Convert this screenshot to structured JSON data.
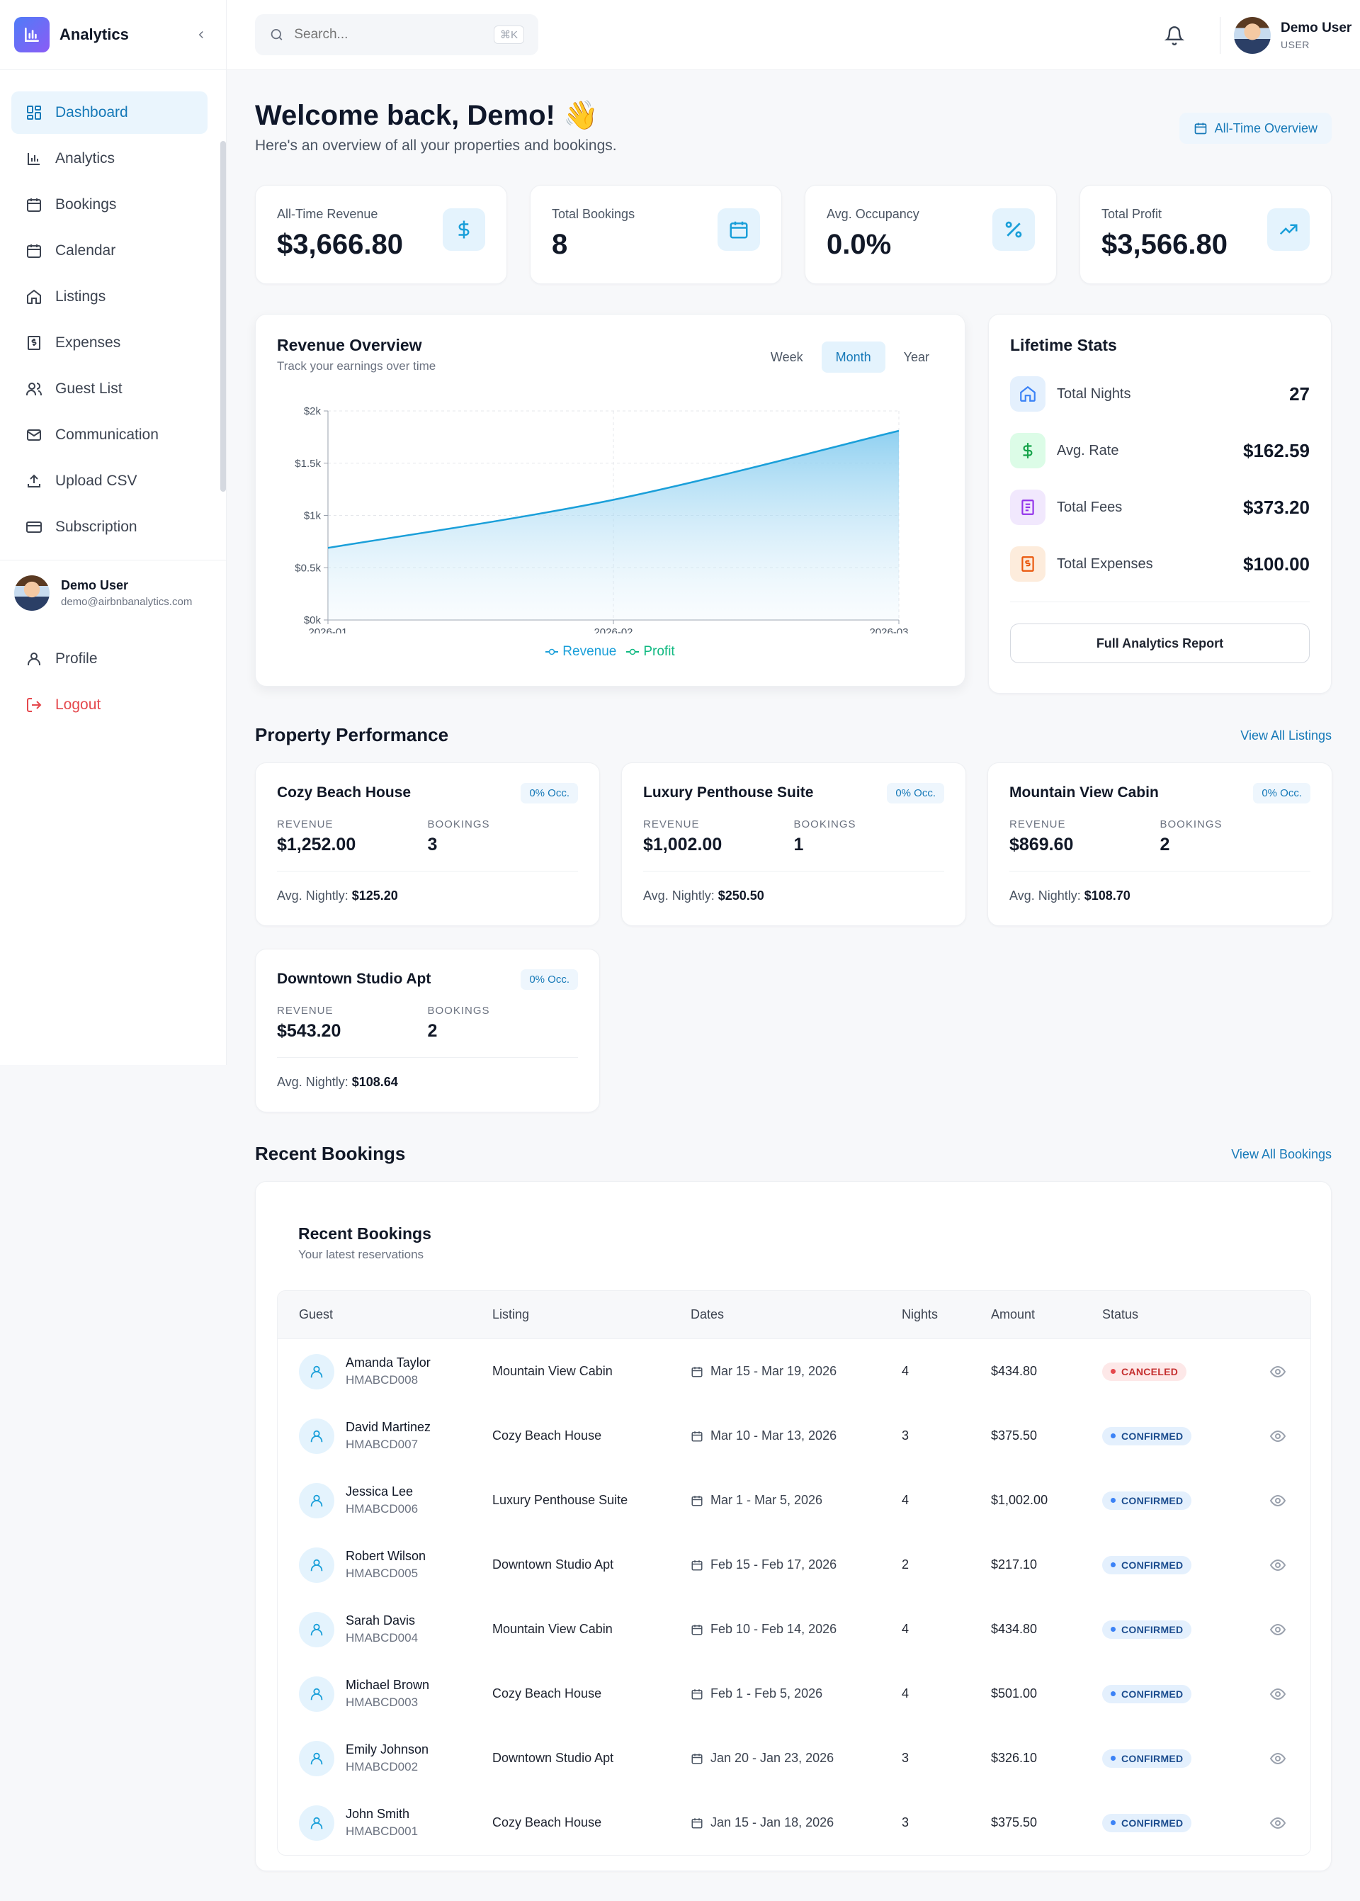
{
  "sidebar": {
    "brand": "Analytics",
    "nav": [
      "Dashboard",
      "Analytics",
      "Bookings",
      "Calendar",
      "Listings",
      "Expenses",
      "Guest List",
      "Communication",
      "Upload CSV",
      "Subscription"
    ],
    "user": {
      "name": "Demo User",
      "email": "demo@airbnbanalytics.com"
    },
    "sub_nav": {
      "profile": "Profile",
      "logout": "Logout"
    }
  },
  "header": {
    "search_placeholder": "Search...",
    "shortcut": "⌘K",
    "user_name": "Demo User",
    "user_role": "USER"
  },
  "welcome": {
    "title": "Welcome back, Demo! 👋",
    "subtitle": "Here's an overview of all your properties and bookings.",
    "overview_button": "All-Time Overview"
  },
  "stats": [
    {
      "label": "All-Time Revenue",
      "value": "$3,666.80"
    },
    {
      "label": "Total Bookings",
      "value": "8"
    },
    {
      "label": "Avg. Occupancy",
      "value": "0.0%"
    },
    {
      "label": "Total Profit",
      "value": "$3,566.80"
    }
  ],
  "revenue": {
    "title": "Revenue Overview",
    "subtitle": "Track your earnings over time",
    "tabs": [
      "Week",
      "Month",
      "Year"
    ],
    "active_tab": "Month"
  },
  "chart_data": {
    "type": "area",
    "x": [
      "2026-01",
      "2026-02",
      "2026-03"
    ],
    "series": [
      {
        "name": "Revenue",
        "values": [
          690,
          1150,
          1810
        ]
      },
      {
        "name": "Profit",
        "values": [
          690,
          1150,
          1810
        ]
      }
    ],
    "yticks": [
      "$0k",
      "$0.5k",
      "$1k",
      "$1.5k",
      "$2k"
    ],
    "ylim": [
      0,
      2000
    ],
    "grid": true,
    "legend": "bottom-center",
    "colors": {
      "revenue": "#1a9fd9",
      "profit": "#10b981"
    }
  },
  "lifetime": {
    "title": "Lifetime Stats",
    "items": [
      {
        "label": "Total Nights",
        "value": "27"
      },
      {
        "label": "Avg. Rate",
        "value": "$162.59"
      },
      {
        "label": "Total Fees",
        "value": "$373.20"
      },
      {
        "label": "Total Expenses",
        "value": "$100.00"
      }
    ],
    "button": "Full Analytics Report"
  },
  "properties": {
    "title": "Property Performance",
    "link": "View All Listings",
    "revenue_label": "REVENUE",
    "bookings_label": "BOOKINGS",
    "avg_label": "Avg. Nightly:",
    "items": [
      {
        "name": "Cozy Beach House",
        "occ": "0% Occ.",
        "revenue": "$1,252.00",
        "bookings": "3",
        "avg": "$125.20"
      },
      {
        "name": "Luxury Penthouse Suite",
        "occ": "0% Occ.",
        "revenue": "$1,002.00",
        "bookings": "1",
        "avg": "$250.50"
      },
      {
        "name": "Mountain View Cabin",
        "occ": "0% Occ.",
        "revenue": "$869.60",
        "bookings": "2",
        "avg": "$108.70"
      },
      {
        "name": "Downtown Studio Apt",
        "occ": "0% Occ.",
        "revenue": "$543.20",
        "bookings": "2",
        "avg": "$108.64"
      }
    ]
  },
  "bookings": {
    "section_title": "Recent Bookings",
    "link": "View All Bookings",
    "card_title": "Recent Bookings",
    "card_subtitle": "Your latest reservations",
    "columns": [
      "Guest",
      "Listing",
      "Dates",
      "Nights",
      "Amount",
      "Status"
    ],
    "rows": [
      {
        "guest": "Amanda Taylor",
        "id": "HMABCD008",
        "listing": "Mountain View Cabin",
        "dates": "Mar 15 - Mar 19, 2026",
        "nights": "4",
        "amount": "$434.80",
        "status": "CANCELED"
      },
      {
        "guest": "David Martinez",
        "id": "HMABCD007",
        "listing": "Cozy Beach House",
        "dates": "Mar 10 - Mar 13, 2026",
        "nights": "3",
        "amount": "$375.50",
        "status": "CONFIRMED"
      },
      {
        "guest": "Jessica Lee",
        "id": "HMABCD006",
        "listing": "Luxury Penthouse Suite",
        "dates": "Mar 1 - Mar 5, 2026",
        "nights": "4",
        "amount": "$1,002.00",
        "status": "CONFIRMED"
      },
      {
        "guest": "Robert Wilson",
        "id": "HMABCD005",
        "listing": "Downtown Studio Apt",
        "dates": "Feb 15 - Feb 17, 2026",
        "nights": "2",
        "amount": "$217.10",
        "status": "CONFIRMED"
      },
      {
        "guest": "Sarah Davis",
        "id": "HMABCD004",
        "listing": "Mountain View Cabin",
        "dates": "Feb 10 - Feb 14, 2026",
        "nights": "4",
        "amount": "$434.80",
        "status": "CONFIRMED"
      },
      {
        "guest": "Michael Brown",
        "id": "HMABCD003",
        "listing": "Cozy Beach House",
        "dates": "Feb 1 - Feb 5, 2026",
        "nights": "4",
        "amount": "$501.00",
        "status": "CONFIRMED"
      },
      {
        "guest": "Emily Johnson",
        "id": "HMABCD002",
        "listing": "Downtown Studio Apt",
        "dates": "Jan 20 - Jan 23, 2026",
        "nights": "3",
        "amount": "$326.10",
        "status": "CONFIRMED"
      },
      {
        "guest": "John Smith",
        "id": "HMABCD001",
        "listing": "Cozy Beach House",
        "dates": "Jan 15 - Jan 18, 2026",
        "nights": "3",
        "amount": "$375.50",
        "status": "CONFIRMED"
      }
    ]
  }
}
